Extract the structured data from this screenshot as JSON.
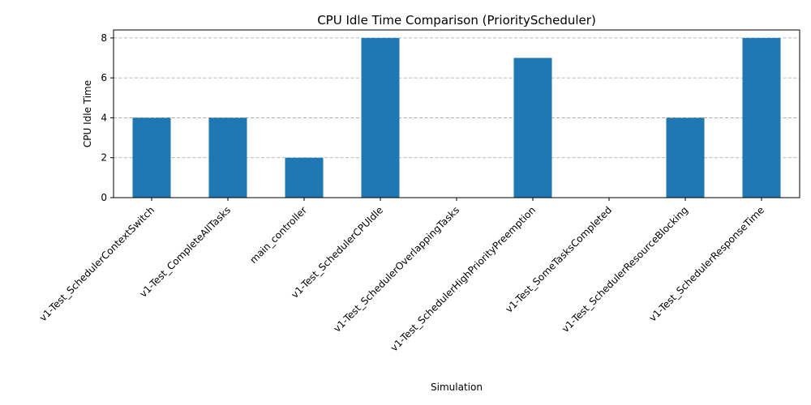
{
  "chart_data": {
    "type": "bar",
    "title": "CPU Idle Time Comparison (PriorityScheduler)",
    "xlabel": "Simulation",
    "ylabel": "CPU Idle Time",
    "categories": [
      "v1-Test_SchedulerContextSwitch",
      "v1-Test_CompleteAllTasks",
      "main_controller",
      "v1-Test_SchedulerCPUIdle",
      "v1-Test_SchedulerOverlappingTasks",
      "v1-Test_SchedulerHighPriorityPreemption",
      "v1-Test_SomeTasksCompleted",
      "v1-Test_SchedulerResourceBlocking",
      "v1-Test_SchedulerResponseTime"
    ],
    "values": [
      4,
      4,
      2,
      8,
      0,
      7,
      0,
      4,
      8
    ],
    "ylim": [
      0,
      8.4
    ],
    "yticks": [
      0,
      2,
      4,
      6,
      8
    ],
    "grid": "y-dashed",
    "bar_color": "#1f77b4"
  }
}
